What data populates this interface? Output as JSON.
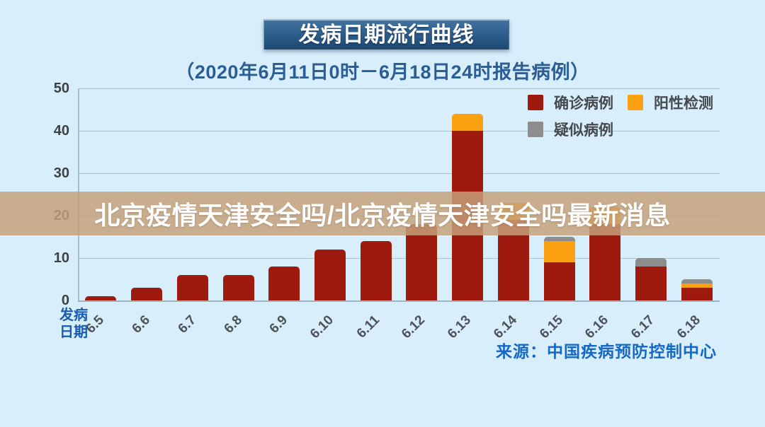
{
  "page": {
    "background_color": "#d9eefb"
  },
  "header": {
    "title": "发病日期流行曲线",
    "subtitle": "（2020年6月11日0时－6月18日24时报告病例）"
  },
  "overlay": {
    "text": "北京疫情天津安全吗/北京疫情天津安全吗最新消息",
    "band_color": "#c5a078",
    "text_color": "#ffffff"
  },
  "source": {
    "label": "来源：中国疾病预防控制中心"
  },
  "axis": {
    "x_title_lines": [
      "发病",
      "日期"
    ],
    "x_title_color": "#1a5cb0"
  },
  "chart_data": {
    "type": "bar",
    "stacked": true,
    "title": "发病日期流行曲线",
    "subtitle": "（2020年6月11日0时－6月18日24时报告病例）",
    "xlabel": "发病日期",
    "ylabel": "",
    "ylim": [
      0,
      50
    ],
    "yticks": [
      0,
      10,
      20,
      30,
      40,
      50
    ],
    "grid": true,
    "legend_position": "top-right",
    "categories": [
      "6.5",
      "6.6",
      "6.7",
      "6.8",
      "6.9",
      "6.10",
      "6.11",
      "6.12",
      "6.13",
      "6.14",
      "6.15",
      "6.16",
      "6.17",
      "6.18"
    ],
    "series": [
      {
        "name": "确诊病例",
        "color": "#9e1a0e",
        "values": [
          1,
          3,
          6,
          6,
          8,
          12,
          14,
          18,
          40,
          19,
          9,
          18,
          8,
          3
        ]
      },
      {
        "name": "阳性检测",
        "color": "#faa011",
        "values": [
          0,
          0,
          0,
          0,
          0,
          0,
          0,
          0,
          4,
          4,
          5,
          4,
          0,
          1
        ]
      },
      {
        "name": "疑似病例",
        "color": "#8d8d8d",
        "values": [
          0,
          0,
          0,
          0,
          0,
          0,
          0,
          0,
          0,
          0,
          1,
          0,
          2,
          1
        ]
      }
    ],
    "totals": [
      1,
      3,
      6,
      6,
      8,
      12,
      14,
      18,
      44,
      23,
      15,
      22,
      10,
      5
    ]
  }
}
